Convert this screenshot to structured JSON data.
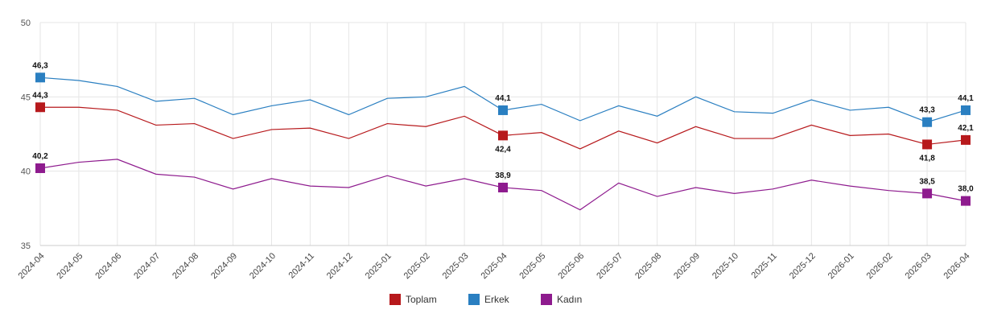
{
  "chart_data": {
    "type": "line",
    "x": [
      "2024-04",
      "2024-05",
      "2024-06",
      "2024-07",
      "2024-08",
      "2024-09",
      "2024-10",
      "2024-11",
      "2024-12",
      "2025-01",
      "2025-02",
      "2025-03",
      "2025-04",
      "2025-05",
      "2025-06",
      "2025-07",
      "2025-08",
      "2025-09",
      "2025-10",
      "2025-11",
      "2025-12",
      "2026-01",
      "2026-02",
      "2026-03",
      "2026-04"
    ],
    "ylim": [
      35,
      50
    ],
    "yticks": [
      35,
      40,
      45,
      50
    ],
    "grid": true,
    "legend_position": "bottom",
    "series": [
      {
        "name": "Toplam",
        "color": "#b7191c",
        "values": [
          44.3,
          44.3,
          44.1,
          43.1,
          43.2,
          42.2,
          42.8,
          42.9,
          42.2,
          43.2,
          43.0,
          43.7,
          42.4,
          42.6,
          41.5,
          42.7,
          41.9,
          43.0,
          42.2,
          42.2,
          43.1,
          42.4,
          42.5,
          41.8,
          42.1
        ],
        "labels": [
          {
            "index": 0,
            "text": "44,3",
            "pos": "above"
          },
          {
            "index": 12,
            "text": "42,4",
            "pos": "below"
          },
          {
            "index": 23,
            "text": "41,8",
            "pos": "below"
          },
          {
            "index": 24,
            "text": "42,1",
            "pos": "above"
          }
        ]
      },
      {
        "name": "Erkek",
        "color": "#2a7fc1",
        "values": [
          46.3,
          46.1,
          45.7,
          44.7,
          44.9,
          43.8,
          44.4,
          44.8,
          43.8,
          44.9,
          45.0,
          45.7,
          44.1,
          44.5,
          43.4,
          44.4,
          43.7,
          45.0,
          44.0,
          43.9,
          44.8,
          44.1,
          44.3,
          43.3,
          44.1
        ],
        "labels": [
          {
            "index": 0,
            "text": "46,3",
            "pos": "above"
          },
          {
            "index": 12,
            "text": "44,1",
            "pos": "above"
          },
          {
            "index": 23,
            "text": "43,3",
            "pos": "above"
          },
          {
            "index": 24,
            "text": "44,1",
            "pos": "above"
          }
        ]
      },
      {
        "name": "Kadın",
        "color": "#8e1b8e",
        "values": [
          40.2,
          40.6,
          40.8,
          39.8,
          39.6,
          38.8,
          39.5,
          39.0,
          38.9,
          39.7,
          39.0,
          39.5,
          38.9,
          38.7,
          37.4,
          39.2,
          38.3,
          38.9,
          38.5,
          38.8,
          39.4,
          39.0,
          38.7,
          38.5,
          38.0
        ],
        "labels": [
          {
            "index": 0,
            "text": "40,2",
            "pos": "above"
          },
          {
            "index": 12,
            "text": "38,9",
            "pos": "above"
          },
          {
            "index": 23,
            "text": "38,5",
            "pos": "above"
          },
          {
            "index": 24,
            "text": "38,0",
            "pos": "above"
          }
        ]
      }
    ]
  }
}
